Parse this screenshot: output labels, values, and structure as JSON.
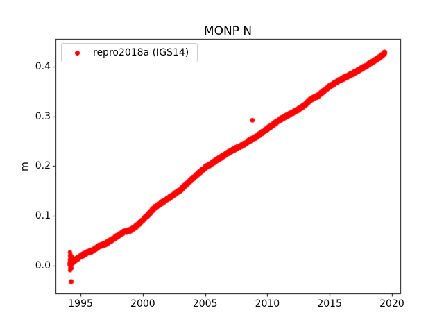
{
  "colors": {
    "background": "#ffffff",
    "axes": "#000000",
    "text": "#000000",
    "marker": "#ff0000",
    "legend_border": "#cccccc"
  },
  "chart_data": {
    "type": "scatter",
    "title": "MONP N",
    "xlabel": "",
    "ylabel": "m",
    "xlim": [
      1992.99,
      2020.67
    ],
    "ylim": [
      -0.0557,
      0.4554
    ],
    "grid": false,
    "legend_position": "upper left",
    "x_ticks": {
      "values": [
        1995,
        2000,
        2005,
        2010,
        2015,
        2020
      ],
      "labels": [
        "1995",
        "2000",
        "2005",
        "2010",
        "2015",
        "2020"
      ]
    },
    "y_ticks": {
      "values": [
        0.0,
        0.1,
        0.2,
        0.3,
        0.4
      ],
      "labels": [
        "0.0",
        "0.1",
        "0.2",
        "0.3",
        "0.4"
      ]
    },
    "series": [
      {
        "name": "repro2018a (IGS14)",
        "color": "#ff0000",
        "marker": "point",
        "jitter_m": 0.003,
        "points_per_year": 110,
        "trend_keypoints": [
          [
            1994.12,
            0.004
          ],
          [
            1994.5,
            0.01
          ],
          [
            1995.0,
            0.019
          ],
          [
            1995.5,
            0.026
          ],
          [
            1996.0,
            0.031
          ],
          [
            1996.5,
            0.04
          ],
          [
            1997.0,
            0.044
          ],
          [
            1997.5,
            0.052
          ],
          [
            1998.0,
            0.06
          ],
          [
            1998.5,
            0.068
          ],
          [
            1999.0,
            0.071
          ],
          [
            1999.5,
            0.08
          ],
          [
            2000.0,
            0.092
          ],
          [
            2000.5,
            0.104
          ],
          [
            2001.0,
            0.118
          ],
          [
            2001.5,
            0.126
          ],
          [
            2002.0,
            0.134
          ],
          [
            2002.5,
            0.143
          ],
          [
            2003.0,
            0.152
          ],
          [
            2003.5,
            0.163
          ],
          [
            2004.0,
            0.175
          ],
          [
            2004.5,
            0.186
          ],
          [
            2005.0,
            0.197
          ],
          [
            2005.5,
            0.205
          ],
          [
            2006.0,
            0.213
          ],
          [
            2006.5,
            0.221
          ],
          [
            2007.0,
            0.229
          ],
          [
            2007.5,
            0.236
          ],
          [
            2008.0,
            0.242
          ],
          [
            2008.5,
            0.25
          ],
          [
            2009.0,
            0.257
          ],
          [
            2009.5,
            0.266
          ],
          [
            2010.0,
            0.275
          ],
          [
            2010.5,
            0.284
          ],
          [
            2011.0,
            0.293
          ],
          [
            2011.5,
            0.3
          ],
          [
            2012.0,
            0.307
          ],
          [
            2012.5,
            0.314
          ],
          [
            2013.0,
            0.322
          ],
          [
            2013.4,
            0.332
          ],
          [
            2013.7,
            0.337
          ],
          [
            2014.0,
            0.34
          ],
          [
            2014.5,
            0.35
          ],
          [
            2015.0,
            0.36
          ],
          [
            2015.5,
            0.368
          ],
          [
            2016.0,
            0.375
          ],
          [
            2016.5,
            0.381
          ],
          [
            2017.0,
            0.388
          ],
          [
            2017.5,
            0.395
          ],
          [
            2018.0,
            0.402
          ],
          [
            2018.5,
            0.41
          ],
          [
            2019.0,
            0.418
          ],
          [
            2019.45,
            0.428
          ]
        ],
        "start_cluster": [
          [
            1994.13,
            0.002
          ],
          [
            1994.14,
            0.012
          ],
          [
            1994.15,
            0.02
          ],
          [
            1994.15,
            0.027
          ],
          [
            1994.16,
            0.006
          ],
          [
            1994.16,
            -0.009
          ],
          [
            1994.17,
            -0.004
          ],
          [
            1994.18,
            0.015
          ],
          [
            1994.19,
            0.023
          ],
          [
            1994.2,
            0.009
          ],
          [
            1994.21,
            -0.002
          ],
          [
            1994.22,
            0.017
          ],
          [
            1994.24,
            0.005
          ],
          [
            1994.26,
            0.012
          ],
          [
            1994.28,
            -0.005
          ],
          [
            1994.3,
            0.008
          ],
          [
            1994.32,
            0.018
          ],
          [
            1994.34,
            0.003
          ]
        ],
        "outliers": [
          [
            1994.25,
            -0.032
          ],
          [
            2008.8,
            0.292
          ]
        ]
      }
    ]
  }
}
